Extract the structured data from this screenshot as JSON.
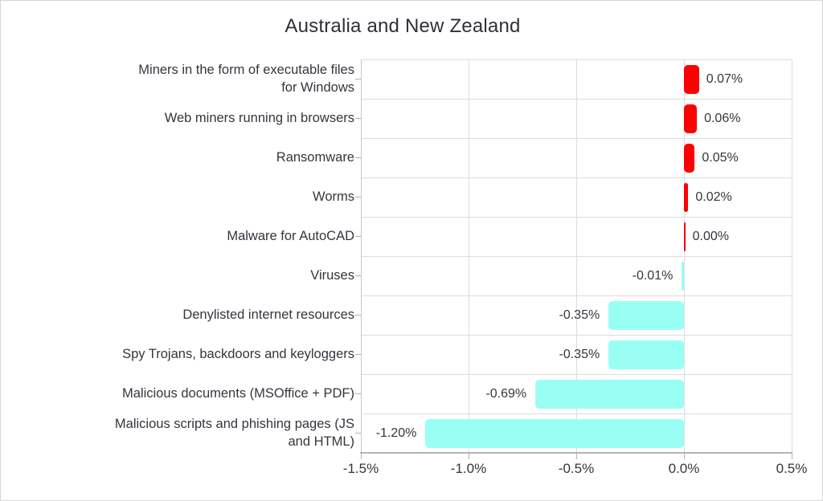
{
  "figure": {
    "background": "#ffffff",
    "border_color": "#d6d6d6"
  },
  "colors": {
    "positive_bar": "#ff0000",
    "negative_bar": "#99fff5",
    "text": "#35353e",
    "grid": "#dcdcdc",
    "axis": "#b3b3b3"
  },
  "chart_data": {
    "type": "bar",
    "orientation": "horizontal",
    "title": "Australia and New Zealand",
    "xlabel": "",
    "ylabel": "",
    "xlim": [
      -1.5,
      0.5
    ],
    "grid": true,
    "legend": false,
    "x_ticks": [
      -1.5,
      -1.0,
      -0.5,
      0.0,
      0.5
    ],
    "x_tick_labels": [
      "-1.5%",
      "-1.0%",
      "-0.5%",
      "0.0%",
      "0.5%"
    ],
    "categories": [
      "Miners in the form of executable files\nfor Windows",
      "Web miners running in browsers",
      "Ransomware",
      "Worms",
      "Malware for AutoCAD",
      "Viruses",
      "Denylisted internet resources",
      "Spy Trojans, backdoors and keyloggers",
      "Malicious documents (MSOffice + PDF)",
      "Malicious scripts and phishing pages (JS\nand HTML)"
    ],
    "values": [
      0.07,
      0.06,
      0.05,
      0.02,
      0.0,
      -0.01,
      -0.35,
      -0.35,
      -0.69,
      -1.2
    ],
    "value_labels": [
      "0.07%",
      "0.06%",
      "0.05%",
      "0.02%",
      "0.00%",
      "-0.01%",
      "-0.35%",
      "-0.35%",
      "-0.69%",
      "-1.20%"
    ]
  }
}
